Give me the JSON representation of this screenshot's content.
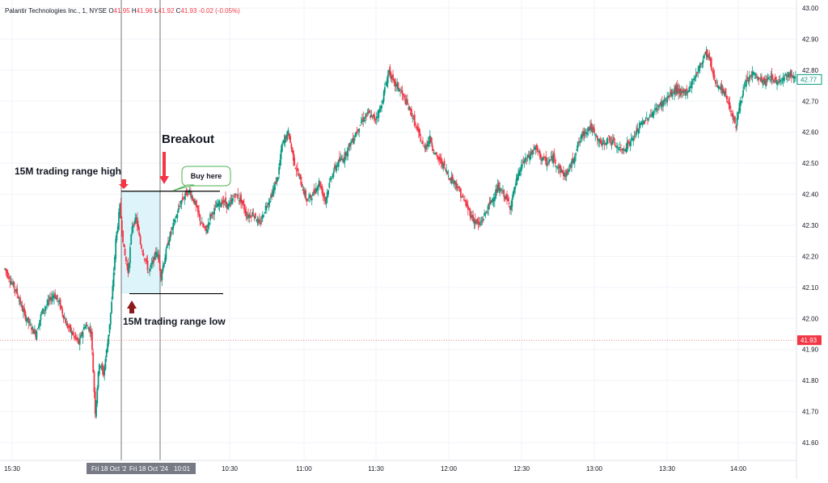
{
  "header": {
    "symbol": "Palantir Technologies Inc., 1, NYSE",
    "o_label": "O",
    "o_value": "41.95",
    "h_label": "H",
    "h_value": "41.96",
    "l_label": "L",
    "l_value": "41.92",
    "c_label": "C",
    "c_value": "41.93",
    "change": "-0.02 (-0.05%)"
  },
  "colors": {
    "up": "#089981",
    "down": "#f23645",
    "grid": "#f0f3fa",
    "range_fill": "#d4f1f9",
    "annotation_arrow": "#f23645",
    "low_arrow": "#8b1a1a",
    "callout_border": "#4caf50"
  },
  "chart_data": {
    "type": "candlestick",
    "title": "",
    "ylim": [
      41.55,
      43.0
    ],
    "y_ticks": [
      "43.00",
      "42.90",
      "42.80",
      "42.70",
      "42.60",
      "42.50",
      "42.40",
      "42.30",
      "42.20",
      "42.10",
      "42.00",
      "41.90",
      "41.80",
      "41.70",
      "41.60"
    ],
    "x_ticks": [
      "15:30",
      "10:30",
      "11:00",
      "11:30",
      "12:00",
      "12:30",
      "13:00",
      "13:30",
      "14:00"
    ],
    "x_overlay_labels": [
      "Fri 18 Oct '2",
      "Fri 18 Oct '24",
      "10:01"
    ],
    "last_price_label": "42.77",
    "current_price_label": "41.93",
    "current_price": 41.93,
    "last_price": 42.77,
    "close_path": [
      [
        0,
        42.16
      ],
      [
        6,
        42.12
      ],
      [
        12,
        42.08
      ],
      [
        18,
        42.02
      ],
      [
        24,
        41.98
      ],
      [
        30,
        41.95
      ],
      [
        36,
        42.02
      ],
      [
        42,
        42.05
      ],
      [
        48,
        42.08
      ],
      [
        54,
        42.04
      ],
      [
        60,
        41.98
      ],
      [
        66,
        41.95
      ],
      [
        72,
        41.92
      ],
      [
        78,
        41.98
      ],
      [
        84,
        41.96
      ],
      [
        88,
        41.7
      ],
      [
        92,
        41.86
      ],
      [
        96,
        41.82
      ],
      [
        100,
        41.92
      ],
      [
        104,
        42.05
      ],
      [
        108,
        42.25
      ],
      [
        112,
        42.36
      ],
      [
        116,
        42.22
      ],
      [
        120,
        42.15
      ],
      [
        124,
        42.3
      ],
      [
        128,
        42.32
      ],
      [
        132,
        42.24
      ],
      [
        136,
        42.2
      ],
      [
        140,
        42.15
      ],
      [
        144,
        42.18
      ],
      [
        148,
        42.22
      ],
      [
        152,
        42.14
      ],
      [
        156,
        42.2
      ],
      [
        160,
        42.26
      ],
      [
        164,
        42.3
      ],
      [
        168,
        42.34
      ],
      [
        172,
        42.38
      ],
      [
        176,
        42.4
      ],
      [
        180,
        42.41
      ],
      [
        184,
        42.38
      ],
      [
        188,
        42.34
      ],
      [
        192,
        42.3
      ],
      [
        196,
        42.28
      ],
      [
        200,
        42.33
      ],
      [
        206,
        42.36
      ],
      [
        212,
        42.38
      ],
      [
        218,
        42.36
      ],
      [
        224,
        42.4
      ],
      [
        230,
        42.38
      ],
      [
        236,
        42.33
      ],
      [
        242,
        42.34
      ],
      [
        248,
        42.3
      ],
      [
        254,
        42.36
      ],
      [
        260,
        42.4
      ],
      [
        266,
        42.46
      ],
      [
        270,
        42.56
      ],
      [
        276,
        42.6
      ],
      [
        282,
        42.5
      ],
      [
        288,
        42.44
      ],
      [
        294,
        42.38
      ],
      [
        300,
        42.4
      ],
      [
        306,
        42.44
      ],
      [
        312,
        42.38
      ],
      [
        318,
        42.46
      ],
      [
        324,
        42.5
      ],
      [
        330,
        42.52
      ],
      [
        336,
        42.56
      ],
      [
        342,
        42.6
      ],
      [
        348,
        42.64
      ],
      [
        354,
        42.66
      ],
      [
        360,
        42.64
      ],
      [
        366,
        42.68
      ],
      [
        370,
        42.74
      ],
      [
        374,
        42.8
      ],
      [
        378,
        42.76
      ],
      [
        384,
        42.74
      ],
      [
        390,
        42.7
      ],
      [
        396,
        42.66
      ],
      [
        402,
        42.6
      ],
      [
        408,
        42.55
      ],
      [
        414,
        42.58
      ],
      [
        420,
        42.52
      ],
      [
        426,
        42.5
      ],
      [
        432,
        42.46
      ],
      [
        438,
        42.44
      ],
      [
        444,
        42.4
      ],
      [
        450,
        42.36
      ],
      [
        456,
        42.32
      ],
      [
        462,
        42.3
      ],
      [
        468,
        42.34
      ],
      [
        474,
        42.38
      ],
      [
        480,
        42.42
      ],
      [
        486,
        42.4
      ],
      [
        492,
        42.36
      ],
      [
        498,
        42.44
      ],
      [
        504,
        42.5
      ],
      [
        510,
        42.52
      ],
      [
        516,
        42.55
      ],
      [
        522,
        42.52
      ],
      [
        528,
        42.5
      ],
      [
        534,
        42.52
      ],
      [
        540,
        42.48
      ],
      [
        546,
        42.46
      ],
      [
        552,
        42.5
      ],
      [
        558,
        42.56
      ],
      [
        564,
        42.6
      ],
      [
        570,
        42.62
      ],
      [
        576,
        42.58
      ],
      [
        582,
        42.56
      ],
      [
        588,
        42.58
      ],
      [
        594,
        42.56
      ],
      [
        600,
        42.54
      ],
      [
        606,
        42.56
      ],
      [
        612,
        42.58
      ],
      [
        618,
        42.62
      ],
      [
        624,
        42.64
      ],
      [
        630,
        42.66
      ],
      [
        636,
        42.68
      ],
      [
        642,
        42.7
      ],
      [
        648,
        42.72
      ],
      [
        654,
        42.74
      ],
      [
        660,
        42.72
      ],
      [
        666,
        42.74
      ],
      [
        672,
        42.78
      ],
      [
        678,
        42.82
      ],
      [
        682,
        42.86
      ],
      [
        686,
        42.84
      ],
      [
        690,
        42.78
      ],
      [
        696,
        42.74
      ],
      [
        702,
        42.72
      ],
      [
        708,
        42.66
      ],
      [
        712,
        42.62
      ],
      [
        716,
        42.7
      ],
      [
        722,
        42.76
      ],
      [
        728,
        42.79
      ],
      [
        734,
        42.77
      ],
      [
        740,
        42.76
      ],
      [
        746,
        42.78
      ],
      [
        752,
        42.76
      ],
      [
        758,
        42.78
      ],
      [
        764,
        42.79
      ],
      [
        770,
        42.77
      ]
    ]
  },
  "annotations": {
    "breakout": "Breakout",
    "range_high": "15M trading range high",
    "range_low": "15M trading range low",
    "buy_here": "Buy here",
    "range_high_price": 42.41,
    "range_low_price": 42.08,
    "range_start_index": 150,
    "range_end_index": 176,
    "breakout_index": 176
  }
}
